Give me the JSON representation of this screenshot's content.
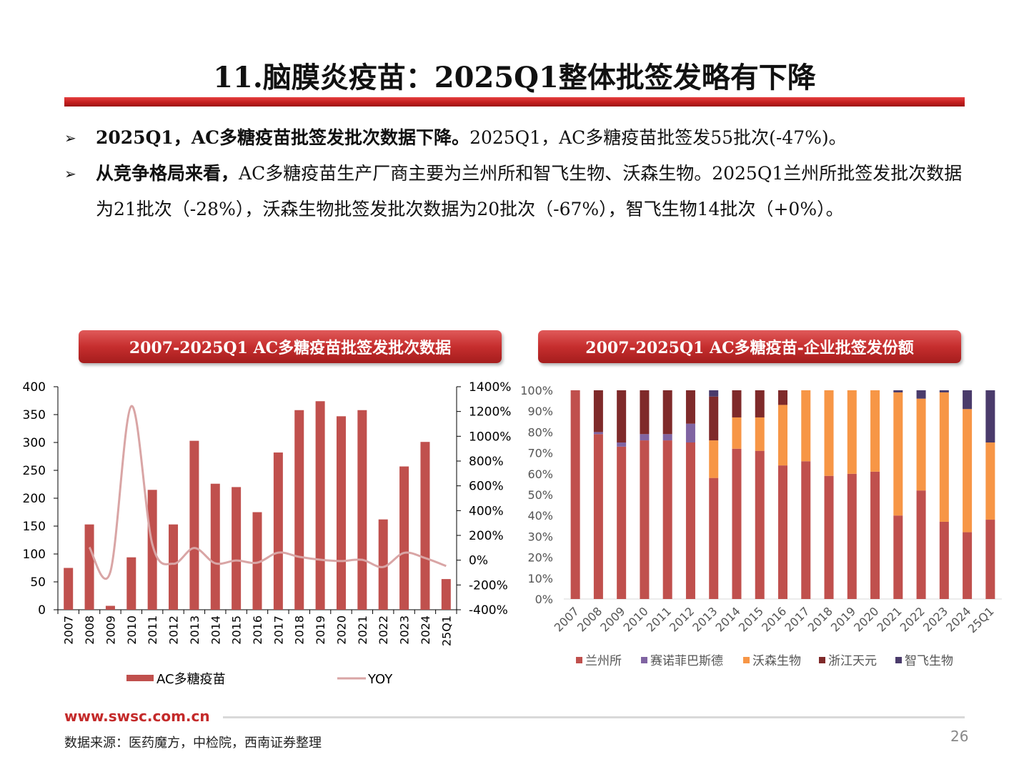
{
  "title": "11.脑膜炎疫苗：2025Q1整体批签发略有下降",
  "bullets": [
    {
      "bold": "2025Q1，AC多糖疫苗批签发批次数据下降。",
      "text": "2025Q1，AC多糖疫苗批签发55批次(-47%)。"
    },
    {
      "bold": "从竞争格局来看，",
      "text": "AC多糖疫苗生产厂商主要为兰州所和智飞生物、沃森生物。2025Q1兰州所批签发批次数据为21批次（-28%），沃森生物批签发批次数据为20批次（-67%），智飞生物14批次（+0%）。"
    }
  ],
  "chart1_title": "2007-2025Q1 AC多糖疫苗批签发批次数据",
  "chart2_title": "2007-2025Q1 AC多糖疫苗-企业批签发份额",
  "colors": {
    "bar": "#c0504d",
    "yoy": "#d9a5a5",
    "lanzhou": "#c0504d",
    "sainuofi": "#8064a2",
    "wosen": "#f79646",
    "zhejiang": "#7f2a2a",
    "zhifei": "#4a3b6b"
  },
  "chart_data": [
    {
      "type": "bar",
      "title": "2007-2025Q1 AC多糖疫苗批签发批次数据",
      "categories": [
        "2007",
        "2008",
        "2009",
        "2010",
        "2011",
        "2012",
        "2013",
        "2014",
        "2015",
        "2016",
        "2017",
        "2018",
        "2019",
        "2020",
        "2021",
        "2022",
        "2023",
        "2024",
        "25Q1"
      ],
      "series": [
        {
          "name": "AC多糖疫苗",
          "axis": "left",
          "type": "bar",
          "values": [
            75,
            153,
            7,
            94,
            215,
            153,
            303,
            226,
            220,
            175,
            282,
            358,
            374,
            347,
            358,
            162,
            257,
            301,
            55
          ]
        },
        {
          "name": "YOY",
          "axis": "right",
          "type": "line",
          "values": [
            null,
            104,
            -95,
            1243,
            129,
            -29,
            98,
            -25,
            -3,
            -20,
            61,
            27,
            4,
            -7,
            3,
            -55,
            59,
            17,
            -47
          ]
        }
      ],
      "ylim_left": [
        0,
        400
      ],
      "left_ticks": [
        "0",
        "50",
        "100",
        "150",
        "200",
        "250",
        "300",
        "350",
        "400"
      ],
      "ylim_right": [
        -400,
        1400
      ],
      "right_ticks": [
        "-400%",
        "-200%",
        "0%",
        "200%",
        "400%",
        "600%",
        "800%",
        "1000%",
        "1200%",
        "1400%"
      ],
      "legend": "bottom"
    },
    {
      "type": "bar",
      "stacked": "percent",
      "title": "2007-2025Q1 AC多糖疫苗-企业批签发份额",
      "categories": [
        "2007",
        "2008",
        "2009",
        "2010",
        "2011",
        "2012",
        "2013",
        "2014",
        "2015",
        "2016",
        "2017",
        "2018",
        "2019",
        "2020",
        "2021",
        "2022",
        "2023",
        "2024",
        "25Q1"
      ],
      "series": [
        {
          "name": "兰州所",
          "values": [
            100,
            79,
            73,
            76,
            76,
            75,
            58,
            72,
            71,
            64,
            66,
            59,
            60,
            61,
            40,
            52,
            37,
            32,
            38
          ]
        },
        {
          "name": "赛诺菲巴斯德",
          "values": [
            0,
            1,
            2,
            3,
            3,
            9,
            0,
            0,
            0,
            0,
            0,
            0,
            0,
            0,
            0,
            0,
            0,
            0,
            0
          ]
        },
        {
          "name": "沃森生物",
          "values": [
            0,
            0,
            0,
            0,
            0,
            0,
            18,
            15,
            16,
            29,
            34,
            41,
            40,
            39,
            59,
            44,
            62,
            59,
            37
          ]
        },
        {
          "name": "浙江天元",
          "values": [
            0,
            20,
            25,
            21,
            21,
            16,
            21,
            13,
            13,
            7,
            0,
            0,
            0,
            0,
            0,
            0,
            0,
            0,
            0
          ]
        },
        {
          "name": "智飞生物",
          "values": [
            0,
            0,
            0,
            0,
            0,
            0,
            3,
            0,
            0,
            0,
            0,
            0,
            0,
            0,
            1,
            4,
            1,
            9,
            25
          ]
        }
      ],
      "ylim": [
        0,
        100
      ],
      "y_ticks": [
        "0%",
        "10%",
        "20%",
        "30%",
        "40%",
        "50%",
        "60%",
        "70%",
        "80%",
        "90%",
        "100%"
      ],
      "legend": "bottom"
    }
  ],
  "footer": {
    "url": "www.swsc.com.cn",
    "source": "数据来源：医药魔方，中检院，西南证券整理",
    "page": "26"
  }
}
